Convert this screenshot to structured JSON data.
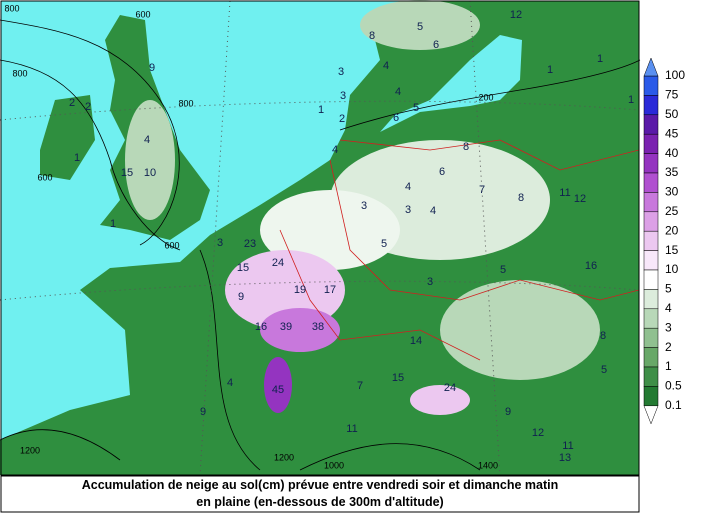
{
  "caption": {
    "line1": "Accumulation de neige au sol(cm) prévue entre vendredi soir et dimanche matin",
    "line2": "en plaine (en-dessous de 300m d'altitude)"
  },
  "colorbar": {
    "levels": [
      100,
      75,
      50,
      45,
      40,
      35,
      30,
      25,
      20,
      15,
      10,
      5,
      4,
      3,
      2,
      1,
      0.5,
      0.1
    ],
    "colors": [
      "#2a5ae8",
      "#2a2ad8",
      "#5a1aa8",
      "#7a22b0",
      "#9434c0",
      "#b050d0",
      "#c878dc",
      "#dca0e6",
      "#ecc8f0",
      "#f8e8fa",
      "#ffffff",
      "#dcecdc",
      "#b8d8b8",
      "#90c090",
      "#68a868",
      "#3f8f48",
      "#237a32"
    ],
    "top_color": "#5a90f0",
    "bottom_color": "#ffffff"
  },
  "map_labels": [
    2,
    2,
    1,
    15,
    10,
    9,
    4,
    1,
    3,
    23,
    15,
    24,
    19,
    17,
    9,
    16,
    39,
    38,
    4,
    9,
    45,
    7,
    15,
    11,
    14,
    24,
    9,
    12,
    11,
    13,
    5,
    8,
    16,
    5,
    7,
    8,
    11,
    12,
    6,
    8,
    4,
    5,
    3,
    3,
    4,
    3,
    8,
    4,
    5,
    6,
    5,
    4,
    6,
    12,
    1,
    1,
    1,
    3,
    3,
    2,
    4,
    1
  ],
  "contour_labels": [
    800,
    800,
    800,
    600,
    200,
    1400,
    1000,
    1200,
    1200,
    600,
    600
  ]
}
